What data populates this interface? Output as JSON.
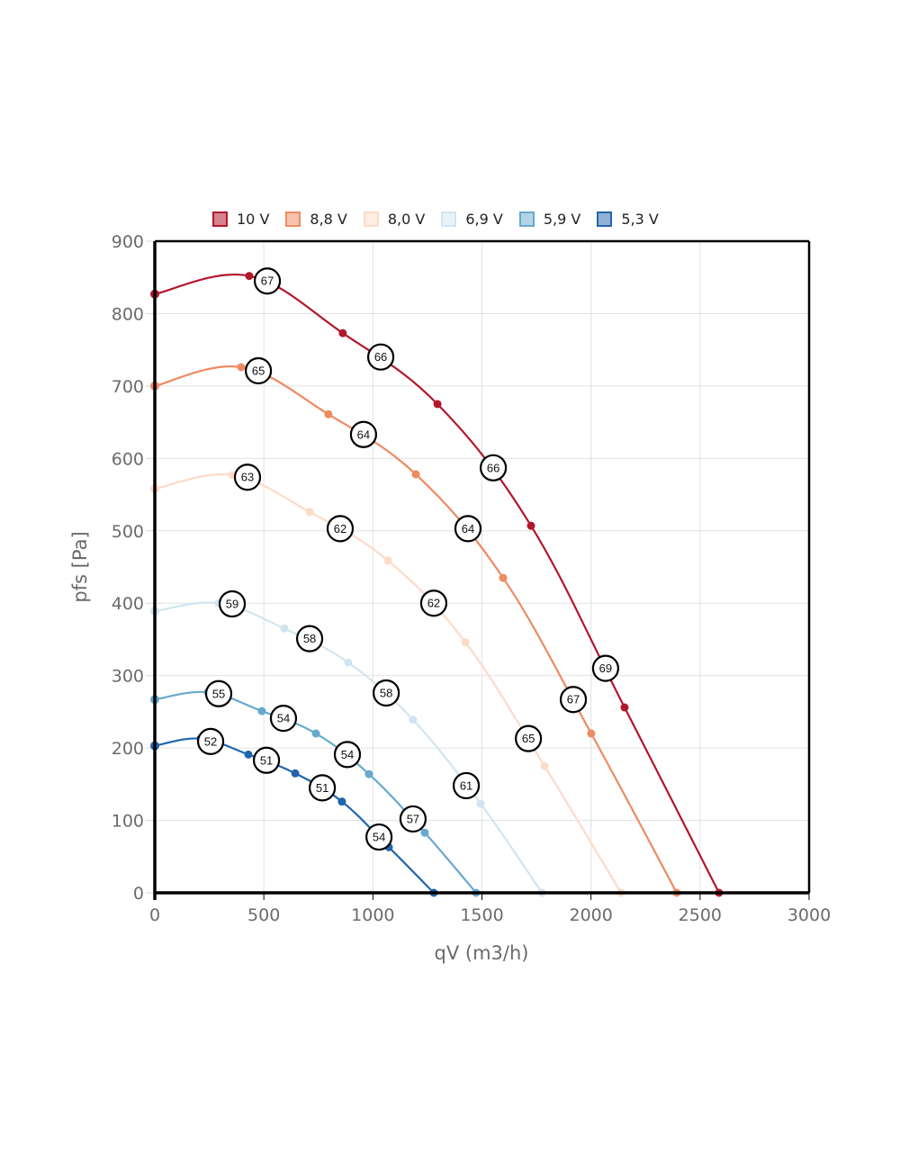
{
  "chart_data": {
    "type": "line",
    "title": "",
    "xlabel": "qV (m3/h)",
    "ylabel": "pfs [Pa]",
    "xlim": [
      0,
      3000
    ],
    "ylim": [
      0,
      900
    ],
    "x_ticks": [
      "0",
      "500",
      "1000",
      "1500",
      "2000",
      "2500",
      "3000"
    ],
    "y_ticks": [
      "0",
      "100",
      "200",
      "300",
      "400",
      "500",
      "600",
      "700",
      "800",
      "900"
    ],
    "x_tick_values": [
      0,
      500,
      1000,
      1500,
      2000,
      2500,
      3000
    ],
    "y_tick_values": [
      0,
      100,
      200,
      300,
      400,
      500,
      600,
      700,
      800,
      900
    ],
    "grid": true,
    "legend_position": "top",
    "series": [
      {
        "name": "10 V",
        "color": "#b2182b",
        "fill": "#d6838f",
        "points": [
          [
            0,
            827
          ],
          [
            433,
            852
          ],
          [
            862,
            773
          ],
          [
            1296,
            675
          ],
          [
            1725,
            507
          ],
          [
            2154,
            256
          ],
          [
            2587,
            0
          ]
        ],
        "annotations": [
          {
            "x": 516,
            "y": 845,
            "label": "67"
          },
          {
            "x": 1036,
            "y": 740,
            "label": "66"
          },
          {
            "x": 1552,
            "y": 587,
            "label": "66"
          },
          {
            "x": 2067,
            "y": 310,
            "label": "69"
          }
        ]
      },
      {
        "name": "8,8 V",
        "color": "#ef8a62",
        "fill": "#f7c2ab",
        "points": [
          [
            0,
            700
          ],
          [
            396,
            726
          ],
          [
            796,
            661
          ],
          [
            1197,
            578
          ],
          [
            1597,
            435
          ],
          [
            2001,
            220
          ],
          [
            2393,
            0
          ]
        ],
        "annotations": [
          {
            "x": 475,
            "y": 721,
            "label": "65"
          },
          {
            "x": 957,
            "y": 633,
            "label": "64"
          },
          {
            "x": 1436,
            "y": 503,
            "label": "64"
          },
          {
            "x": 1919,
            "y": 267,
            "label": "67"
          }
        ]
      },
      {
        "name": "8,0 V",
        "color": "#fddbc7",
        "fill": "#feeee4",
        "points": [
          [
            0,
            558
          ],
          [
            355,
            577
          ],
          [
            710,
            526
          ],
          [
            1069,
            459
          ],
          [
            1424,
            346
          ],
          [
            1787,
            175
          ],
          [
            2138,
            0
          ]
        ],
        "annotations": [
          {
            "x": 425,
            "y": 574,
            "label": "63"
          },
          {
            "x": 850,
            "y": 503,
            "label": "62"
          },
          {
            "x": 1279,
            "y": 400,
            "label": "62"
          },
          {
            "x": 1713,
            "y": 213,
            "label": "65"
          }
        ]
      },
      {
        "name": "6,9 V",
        "color": "#d1e5f0",
        "fill": "#e9f2f8",
        "points": [
          [
            0,
            389
          ],
          [
            293,
            400
          ],
          [
            594,
            365
          ],
          [
            887,
            318
          ],
          [
            1184,
            239
          ],
          [
            1494,
            123
          ],
          [
            1775,
            0
          ]
        ],
        "annotations": [
          {
            "x": 355,
            "y": 399,
            "label": "59"
          },
          {
            "x": 710,
            "y": 351,
            "label": "58"
          },
          {
            "x": 1061,
            "y": 276,
            "label": "58"
          },
          {
            "x": 1428,
            "y": 148,
            "label": "61"
          }
        ]
      },
      {
        "name": "5,9 V",
        "color": "#67a9cf",
        "fill": "#b3d4e7",
        "points": [
          [
            0,
            267
          ],
          [
            243,
            277
          ],
          [
            491,
            251
          ],
          [
            739,
            220
          ],
          [
            982,
            164
          ],
          [
            1238,
            83
          ],
          [
            1473,
            0
          ]
        ],
        "annotations": [
          {
            "x": 293,
            "y": 275,
            "label": "55"
          },
          {
            "x": 590,
            "y": 241,
            "label": "54"
          },
          {
            "x": 883,
            "y": 191,
            "label": "54"
          },
          {
            "x": 1184,
            "y": 102,
            "label": "57"
          }
        ]
      },
      {
        "name": "5,3 V",
        "color": "#2166ac",
        "fill": "#90b2d5",
        "points": [
          [
            0,
            203
          ],
          [
            210,
            213
          ],
          [
            429,
            191
          ],
          [
            644,
            165
          ],
          [
            858,
            126
          ],
          [
            1073,
            63
          ],
          [
            1279,
            0
          ]
        ],
        "annotations": [
          {
            "x": 256,
            "y": 209,
            "label": "52"
          },
          {
            "x": 512,
            "y": 183,
            "label": "51"
          },
          {
            "x": 768,
            "y": 145,
            "label": "51"
          },
          {
            "x": 1028,
            "y": 77,
            "label": "54"
          }
        ]
      }
    ]
  }
}
